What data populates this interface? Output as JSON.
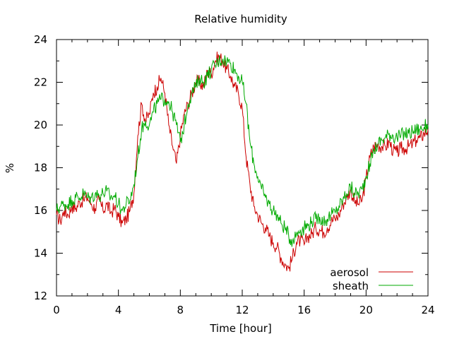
{
  "chart_data": {
    "type": "line",
    "title": "Relative humidity",
    "xlabel": "Time [hour]",
    "ylabel": "%",
    "xlim": [
      0,
      24
    ],
    "ylim": [
      12,
      24
    ],
    "xticks": [
      0,
      4,
      8,
      12,
      16,
      20,
      24
    ],
    "yticks": [
      12,
      14,
      16,
      18,
      20,
      22,
      24
    ],
    "xtick_labels": [
      "0",
      "4",
      "8",
      "12",
      "16",
      "20",
      "24"
    ],
    "ytick_labels": [
      "12",
      "14",
      "16",
      "18",
      "20",
      "22",
      "24"
    ],
    "grid": false,
    "legend_position": "bottom-right",
    "series": [
      {
        "name": "aerosol",
        "color": "#cc0000",
        "x": [
          0,
          0.25,
          0.5,
          0.75,
          1,
          1.25,
          1.5,
          1.75,
          2,
          2.25,
          2.5,
          2.75,
          3,
          3.25,
          3.5,
          3.75,
          4,
          4.25,
          4.5,
          4.75,
          5,
          5.25,
          5.5,
          5.75,
          6,
          6.25,
          6.5,
          6.75,
          7,
          7.25,
          7.5,
          7.75,
          8,
          8.25,
          8.5,
          8.75,
          9,
          9.25,
          9.5,
          9.75,
          10,
          10.25,
          10.5,
          10.75,
          11,
          11.25,
          11.5,
          11.75,
          12,
          12.25,
          12.5,
          12.75,
          13,
          13.25,
          13.5,
          13.75,
          14,
          14.25,
          14.5,
          14.75,
          15,
          15.25,
          15.5,
          15.75,
          16,
          16.25,
          16.5,
          16.75,
          17,
          17.25,
          17.5,
          17.75,
          18,
          18.25,
          18.5,
          18.75,
          19,
          19.25,
          19.5,
          19.75,
          20,
          20.25,
          20.5,
          20.75,
          21,
          21.25,
          21.5,
          21.75,
          22,
          22.25,
          22.5,
          22.75,
          23,
          23.25,
          23.5,
          23.75,
          24
        ],
        "values": [
          15.8,
          15.5,
          16.0,
          15.8,
          16.2,
          16.1,
          16.4,
          16.5,
          16.6,
          16.3,
          16.1,
          16.5,
          16.0,
          16.3,
          15.9,
          16.1,
          15.7,
          15.4,
          15.6,
          16.0,
          16.8,
          19.5,
          21.0,
          20.2,
          20.5,
          21.5,
          21.8,
          22.2,
          21.5,
          20.0,
          19.0,
          18.2,
          19.5,
          20.5,
          21.0,
          21.5,
          22.0,
          22.0,
          21.8,
          22.5,
          22.4,
          23.0,
          23.2,
          23.0,
          22.6,
          22.3,
          21.8,
          21.5,
          20.8,
          18.5,
          17.2,
          16.2,
          15.8,
          15.4,
          15.2,
          14.8,
          14.5,
          14.3,
          13.8,
          13.5,
          13.3,
          13.8,
          14.5,
          14.6,
          14.4,
          14.8,
          14.9,
          15.2,
          15.1,
          15.0,
          15.2,
          15.5,
          15.6,
          15.8,
          16.3,
          16.6,
          17.0,
          16.4,
          16.3,
          16.5,
          17.5,
          18.5,
          19.0,
          19.1,
          19.0,
          19.0,
          19.2,
          18.8,
          18.7,
          18.9,
          18.9,
          19.0,
          19.1,
          19.3,
          19.4,
          19.6,
          19.8
        ]
      },
      {
        "name": "sheath",
        "color": "#00aa00",
        "x": [
          0,
          0.25,
          0.5,
          0.75,
          1,
          1.25,
          1.5,
          1.75,
          2,
          2.25,
          2.5,
          2.75,
          3,
          3.25,
          3.5,
          3.75,
          4,
          4.25,
          4.5,
          4.75,
          5,
          5.25,
          5.5,
          5.75,
          6,
          6.25,
          6.5,
          6.75,
          7,
          7.25,
          7.5,
          7.75,
          8,
          8.25,
          8.5,
          8.75,
          9,
          9.25,
          9.5,
          9.75,
          10,
          10.25,
          10.5,
          10.75,
          11,
          11.25,
          11.5,
          11.75,
          12,
          12.25,
          12.5,
          12.75,
          13,
          13.25,
          13.5,
          13.75,
          14,
          14.25,
          14.5,
          14.75,
          15,
          15.25,
          15.5,
          15.75,
          16,
          16.25,
          16.5,
          16.75,
          17,
          17.25,
          17.5,
          17.75,
          18,
          18.25,
          18.5,
          18.75,
          19,
          19.25,
          19.5,
          19.75,
          20,
          20.25,
          20.5,
          20.75,
          21,
          21.25,
          21.5,
          21.75,
          22,
          22.25,
          22.5,
          22.75,
          23,
          23.25,
          23.5,
          23.75,
          24
        ],
        "values": [
          16.0,
          16.2,
          16.3,
          16.3,
          16.5,
          16.6,
          16.6,
          16.8,
          16.6,
          16.6,
          16.8,
          16.7,
          16.8,
          16.9,
          16.6,
          16.7,
          16.3,
          16.0,
          16.3,
          16.5,
          17.2,
          18.5,
          19.8,
          20.2,
          20.0,
          20.6,
          21.0,
          21.2,
          21.2,
          21.1,
          20.6,
          20.0,
          19.2,
          20.0,
          21.0,
          21.5,
          21.8,
          22.2,
          22.0,
          22.3,
          22.6,
          22.8,
          23.0,
          23.1,
          23.0,
          22.9,
          22.6,
          22.3,
          22.0,
          21.0,
          19.2,
          18.2,
          17.6,
          17.0,
          16.6,
          16.3,
          16.0,
          15.8,
          15.4,
          15.2,
          14.8,
          14.6,
          14.9,
          15.1,
          15.2,
          15.3,
          15.5,
          15.6,
          15.7,
          15.5,
          15.6,
          15.8,
          15.9,
          16.2,
          16.5,
          16.8,
          17.1,
          16.8,
          16.8,
          17.0,
          17.6,
          18.2,
          18.8,
          19.1,
          19.3,
          19.4,
          19.6,
          19.5,
          19.4,
          19.5,
          19.6,
          19.6,
          19.7,
          19.8,
          19.8,
          19.9,
          20.0
        ]
      }
    ]
  }
}
